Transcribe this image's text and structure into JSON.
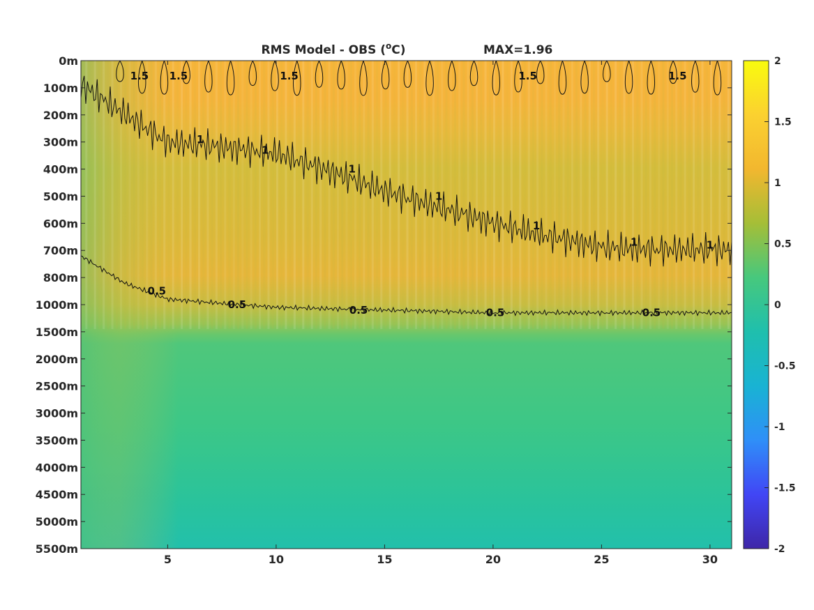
{
  "chart_data": {
    "type": "heatmap",
    "title": "RMS Model - OBS (°C)",
    "title_main": "RMS Model - OBS (",
    "title_sup": "o",
    "title_end": "C)",
    "annotation": "MAX=1.96",
    "xlim": [
      1,
      31
    ],
    "x_ticks": [
      5,
      10,
      15,
      20,
      25,
      30
    ],
    "y_tick_labels": [
      "0m",
      "100m",
      "200m",
      "300m",
      "400m",
      "500m",
      "600m",
      "700m",
      "800m",
      "1000m",
      "1500m",
      "2000m",
      "2500m",
      "3000m",
      "3500m",
      "4000m",
      "4500m",
      "5000m",
      "5500m"
    ],
    "y_direction": "down",
    "colorbar": {
      "range": [
        -2,
        2
      ],
      "ticks": [
        2,
        1.5,
        1,
        0.5,
        0,
        -0.5,
        -1,
        -1.5,
        -2
      ],
      "colormap": "parula",
      "stops": [
        "#3e26a8",
        "#4146f5",
        "#2f8ff8",
        "#19b3d3",
        "#1fbfad",
        "#47c87d",
        "#a5be37",
        "#f2b72f",
        "#fbd130",
        "#f9fb0e"
      ]
    },
    "contour_levels": [
      0.5,
      1,
      1.5
    ],
    "contour_labels_text": {
      "a": "0.5",
      "b": "1",
      "c": "1.5"
    },
    "field_description_values": {
      "surface_0_200m": 1.5,
      "between_300_700m": 1.1,
      "below_1000m": 0.4
    },
    "contour_1_depth_index_by_x": {
      "x": [
        1,
        5,
        10,
        15,
        20,
        25,
        31
      ],
      "depth_index": [
        0.9,
        3.0,
        3.4,
        4.8,
        6.0,
        6.9,
        7.0
      ]
    },
    "contour_05_depth_index_by_x": {
      "x": [
        1,
        3,
        5,
        10,
        15,
        20,
        25,
        31
      ],
      "depth_index": [
        7.2,
        8.2,
        8.8,
        9.1,
        9.2,
        9.3,
        9.3,
        9.3
      ]
    },
    "max_value": 1.96,
    "grid": false
  }
}
